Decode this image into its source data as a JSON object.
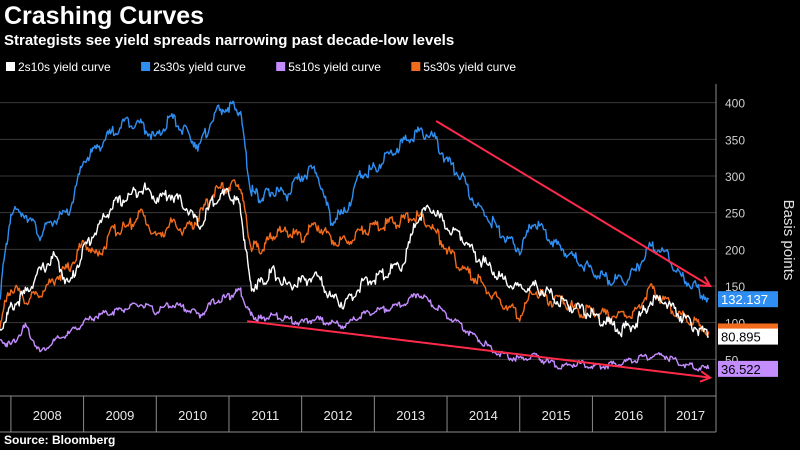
{
  "chart_data": {
    "type": "line",
    "title": "Crashing Curves",
    "subtitle": "Strategists see yield spreads narrowing past decade-low levels",
    "source": "Source: Bloomberg",
    "ylabel": "Basis points",
    "xlabel": "",
    "ylim": [
      0,
      420
    ],
    "xlim": [
      2007.85,
      2017.7
    ],
    "yticks": [
      50,
      100,
      150,
      200,
      250,
      300,
      350,
      400
    ],
    "ytick_labels": [
      "50",
      "100",
      "150",
      "200",
      "250",
      "300",
      "350",
      "400"
    ],
    "year_labels": [
      "2008",
      "2009",
      "2010",
      "2011",
      "2012",
      "2013",
      "2014",
      "2015",
      "2016",
      "2017"
    ],
    "grid": true,
    "legend_position": "top-left",
    "series": [
      {
        "name": "2s10s yield curve",
        "color": "#ffffff",
        "end_label": "80.895",
        "x": [
          2007.85,
          2008.0,
          2008.2,
          2008.4,
          2008.6,
          2008.8,
          2009.0,
          2009.2,
          2009.4,
          2009.6,
          2009.8,
          2010.0,
          2010.2,
          2010.4,
          2010.6,
          2010.8,
          2011.0,
          2011.15,
          2011.3,
          2011.45,
          2011.6,
          2011.8,
          2012.0,
          2012.2,
          2012.4,
          2012.6,
          2012.8,
          2013.0,
          2013.2,
          2013.4,
          2013.6,
          2013.8,
          2014.0,
          2014.2,
          2014.4,
          2014.6,
          2014.8,
          2015.0,
          2015.2,
          2015.4,
          2015.6,
          2015.8,
          2016.0,
          2016.2,
          2016.4,
          2016.6,
          2016.8,
          2017.0,
          2017.2,
          2017.4,
          2017.6
        ],
        "values": [
          90,
          120,
          140,
          170,
          190,
          150,
          200,
          230,
          260,
          270,
          285,
          270,
          275,
          260,
          230,
          270,
          275,
          260,
          150,
          155,
          170,
          150,
          155,
          165,
          135,
          125,
          150,
          160,
          170,
          180,
          245,
          255,
          230,
          220,
          190,
          175,
          155,
          145,
          150,
          140,
          125,
          120,
          110,
          100,
          90,
          100,
          130,
          130,
          110,
          95,
          81
        ]
      },
      {
        "name": "2s30s yield curve",
        "color": "#2f8ef2",
        "end_label": "132.137",
        "x": [
          2007.85,
          2008.0,
          2008.2,
          2008.4,
          2008.6,
          2008.8,
          2009.0,
          2009.2,
          2009.4,
          2009.6,
          2009.8,
          2010.0,
          2010.2,
          2010.4,
          2010.6,
          2010.8,
          2011.0,
          2011.15,
          2011.3,
          2011.45,
          2011.6,
          2011.8,
          2012.0,
          2012.2,
          2012.4,
          2012.6,
          2012.8,
          2013.0,
          2013.2,
          2013.4,
          2013.6,
          2013.8,
          2014.0,
          2014.2,
          2014.4,
          2014.6,
          2014.8,
          2015.0,
          2015.2,
          2015.4,
          2015.6,
          2015.8,
          2016.0,
          2016.2,
          2016.4,
          2016.6,
          2016.8,
          2017.0,
          2017.2,
          2017.4,
          2017.6
        ],
        "values": [
          140,
          250,
          250,
          220,
          240,
          250,
          320,
          340,
          360,
          375,
          370,
          350,
          380,
          360,
          340,
          385,
          395,
          390,
          280,
          270,
          280,
          275,
          300,
          310,
          240,
          250,
          300,
          310,
          330,
          345,
          360,
          355,
          320,
          300,
          260,
          240,
          215,
          200,
          240,
          215,
          200,
          185,
          170,
          160,
          155,
          170,
          205,
          195,
          165,
          150,
          132
        ]
      },
      {
        "name": "5s10s yield curve",
        "color": "#c38dff",
        "end_label": "36.522",
        "x": [
          2007.85,
          2008.0,
          2008.2,
          2008.4,
          2008.6,
          2008.8,
          2009.0,
          2009.2,
          2009.4,
          2009.6,
          2009.8,
          2010.0,
          2010.2,
          2010.4,
          2010.6,
          2010.8,
          2011.0,
          2011.15,
          2011.3,
          2011.45,
          2011.6,
          2011.8,
          2012.0,
          2012.2,
          2012.4,
          2012.6,
          2012.8,
          2013.0,
          2013.2,
          2013.4,
          2013.6,
          2013.8,
          2014.0,
          2014.2,
          2014.4,
          2014.6,
          2014.8,
          2015.0,
          2015.2,
          2015.4,
          2015.6,
          2015.8,
          2016.0,
          2016.2,
          2016.4,
          2016.6,
          2016.8,
          2017.0,
          2017.2,
          2017.4,
          2017.6
        ],
        "values": [
          75,
          70,
          95,
          60,
          75,
          85,
          100,
          110,
          115,
          120,
          125,
          115,
          125,
          120,
          110,
          130,
          135,
          145,
          110,
          105,
          110,
          105,
          100,
          105,
          100,
          95,
          110,
          115,
          120,
          125,
          140,
          125,
          110,
          95,
          80,
          65,
          55,
          50,
          55,
          45,
          40,
          45,
          40,
          42,
          45,
          50,
          55,
          55,
          45,
          40,
          37
        ]
      },
      {
        "name": "5s30s yield curve",
        "color": "#f26a1b",
        "end_label": "",
        "x": [
          2007.85,
          2008.0,
          2008.2,
          2008.4,
          2008.6,
          2008.8,
          2009.0,
          2009.2,
          2009.4,
          2009.6,
          2009.8,
          2010.0,
          2010.2,
          2010.4,
          2010.6,
          2010.8,
          2011.0,
          2011.15,
          2011.3,
          2011.45,
          2011.6,
          2011.8,
          2012.0,
          2012.2,
          2012.4,
          2012.6,
          2012.8,
          2013.0,
          2013.2,
          2013.4,
          2013.6,
          2013.8,
          2014.0,
          2014.2,
          2014.4,
          2014.6,
          2014.8,
          2015.0,
          2015.2,
          2015.4,
          2015.6,
          2015.8,
          2016.0,
          2016.2,
          2016.4,
          2016.6,
          2016.8,
          2017.0,
          2017.2,
          2017.4,
          2017.6
        ],
        "values": [
          100,
          150,
          130,
          140,
          160,
          175,
          210,
          190,
          225,
          230,
          250,
          215,
          235,
          225,
          245,
          280,
          285,
          290,
          205,
          200,
          220,
          225,
          215,
          235,
          215,
          210,
          225,
          230,
          235,
          240,
          245,
          230,
          200,
          175,
          160,
          140,
          125,
          110,
          145,
          130,
          130,
          115,
          115,
          110,
          110,
          115,
          145,
          130,
          110,
          100,
          88
        ]
      }
    ],
    "annotations": [
      {
        "type": "arrow",
        "color": "#ff2a4a",
        "from": {
          "x": 2013.85,
          "y": 375
        },
        "to": {
          "x": 2017.62,
          "y": 150
        }
      },
      {
        "type": "arrow",
        "color": "#ff2a4a",
        "from": {
          "x": 2011.25,
          "y": 102
        },
        "to": {
          "x": 2017.62,
          "y": 25
        }
      }
    ]
  }
}
